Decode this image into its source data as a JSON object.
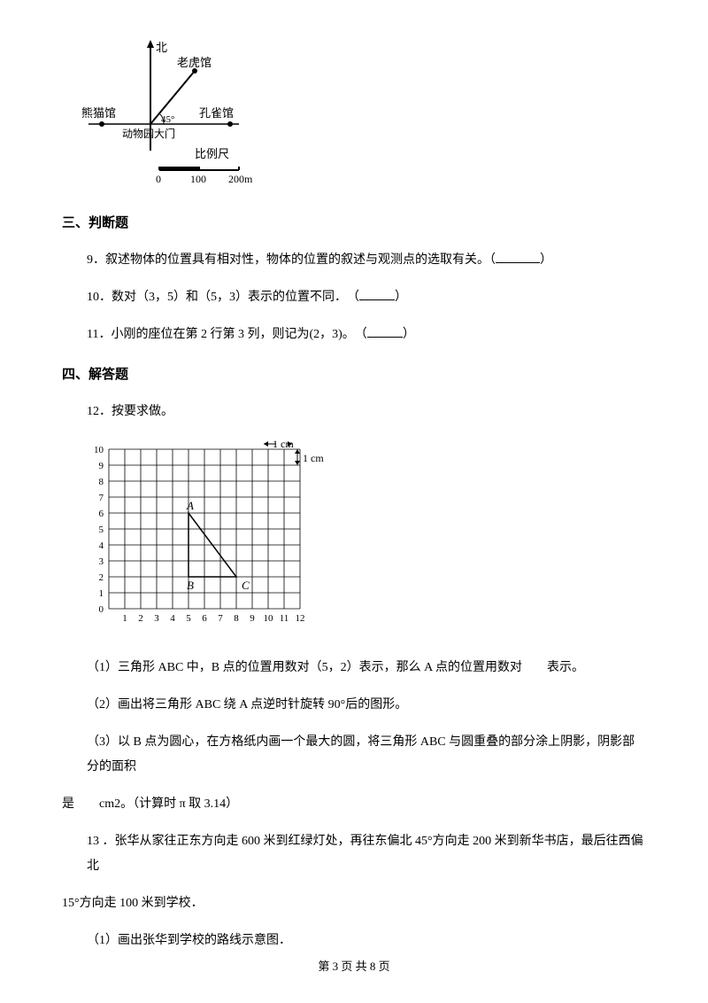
{
  "map": {
    "north": "北",
    "tiger": "老虎馆",
    "panda": "熊猫馆",
    "peacock": "孔雀馆",
    "gate": "动物园大门",
    "angle": "45°",
    "scale_label": "比例尺",
    "scale_0": "0",
    "scale_100": "100",
    "scale_200": "200m"
  },
  "section3": "三、判断题",
  "q9": "9．叙述物体的位置具有相对性，物体的位置的叙述与观测点的选取有关。（",
  "q9_end": "）",
  "q10": "10．数对（3，5）和（5，3）表示的位置不同．　（",
  "q10_end": "）",
  "q11": "11．小刚的座位在第 2 行第 3 列，则记为(2，3)。　（",
  "q11_end": "）",
  "section4": "四、解答题",
  "q12": "12．按要求做。",
  "grid": {
    "cm1": "1 cm",
    "cm2": "1 cm",
    "y_labels": [
      "10",
      "9",
      "8",
      "7",
      "6",
      "5",
      "4",
      "3",
      "2",
      "1",
      "0"
    ],
    "x_labels": [
      "1",
      "2",
      "3",
      "4",
      "5",
      "6",
      "7",
      "8",
      "9",
      "10",
      "11",
      "12"
    ],
    "A": "A",
    "B": "B",
    "C": "C",
    "grid_color": "#000",
    "cell": 18
  },
  "q12_1": "（1）三角形 ABC 中，B 点的位置用数对（5，2）表示，那么 A 点的位置用数对　　表示。",
  "q12_2": "（2）画出将三角形 ABC 绕 A 点逆时针旋转 90°后的图形。",
  "q12_3a": "（3）以 B 点为圆心，在方格纸内画一个最大的圆，将三角形 ABC 与圆重叠的部分涂上阴影，阴影部分的面积",
  "q12_3b": "是　　cm2。（计算时 π 取 3.14）",
  "q13a": "13 ．张华从家往正东方向走 600 米到红绿灯处，再往东偏北 45°方向走 200 米到新华书店，最后往西偏北",
  "q13b": "15°方向走 100 米到学校．",
  "q13_1": "（1）画出张华到学校的路线示意图．",
  "footer": "第 3 页 共 8 页"
}
